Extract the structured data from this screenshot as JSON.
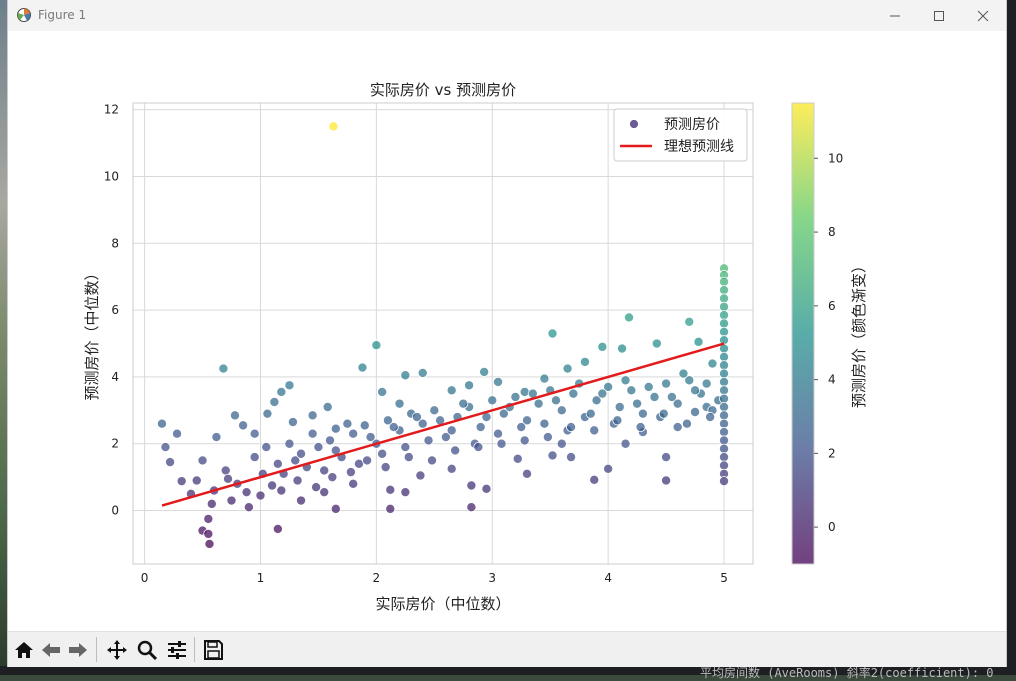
{
  "window": {
    "title": "Figure 1",
    "controls": [
      "minimize",
      "maximize",
      "close"
    ]
  },
  "toolbar": {
    "tools": [
      {
        "name": "home-icon"
      },
      {
        "name": "back-icon"
      },
      {
        "name": "forward-icon"
      },
      {
        "name": "pan-icon"
      },
      {
        "name": "zoom-icon"
      },
      {
        "name": "configure-subplots-icon"
      },
      {
        "name": "save-icon"
      }
    ]
  },
  "desktop": {
    "bottom_text": "平均房间数 (AveRooms) 斜率2(coefficient): 0"
  },
  "chart_data": {
    "type": "scatter",
    "title": "实际房价 vs 预测房价",
    "xlabel": "实际房价（中位数）",
    "ylabel": "预测房价（中位数）",
    "xlim": [
      -0.1,
      5.25
    ],
    "ylim": [
      -1.6,
      12.2
    ],
    "xticks": [
      0,
      1,
      2,
      3,
      4,
      5
    ],
    "yticks": [
      0,
      2,
      4,
      6,
      8,
      10,
      12
    ],
    "grid": true,
    "legend_placement": "top-right",
    "legend": [
      {
        "label": "预测房价",
        "kind": "marker",
        "color": "#6b5b95"
      },
      {
        "label": "理想预测线",
        "kind": "line",
        "color": "#e31a1c"
      }
    ],
    "colorbar": {
      "label": "预测房价（颜色渐变）",
      "range": [
        -1.0,
        11.5
      ],
      "ticks": [
        0,
        2,
        4,
        6,
        8,
        10
      ],
      "colormap": "viridis"
    },
    "ideal_line": {
      "x": [
        0.15,
        5.0
      ],
      "y": [
        0.15,
        5.0
      ],
      "color": "#e31a1c"
    },
    "series": [
      {
        "name": "预测房价",
        "points": [
          [
            1.63,
            11.5
          ],
          [
            0.68,
            4.25
          ],
          [
            1.25,
            3.75
          ],
          [
            0.15,
            2.6
          ],
          [
            0.28,
            2.3
          ],
          [
            0.18,
            1.9
          ],
          [
            0.22,
            1.45
          ],
          [
            0.32,
            0.88
          ],
          [
            0.55,
            -0.25
          ],
          [
            0.5,
            -0.6
          ],
          [
            0.55,
            -0.7
          ],
          [
            0.56,
            -1.0
          ],
          [
            1.15,
            -0.55
          ],
          [
            0.62,
            2.2
          ],
          [
            0.78,
            2.85
          ],
          [
            0.85,
            2.55
          ],
          [
            1.12,
            3.25
          ],
          [
            1.18,
            3.55
          ],
          [
            1.06,
            2.9
          ],
          [
            0.95,
            2.3
          ],
          [
            1.28,
            2.65
          ],
          [
            1.45,
            2.85
          ],
          [
            1.58,
            3.1
          ],
          [
            1.65,
            2.45
          ],
          [
            1.88,
            4.28
          ],
          [
            2.0,
            4.95
          ],
          [
            2.25,
            4.05
          ],
          [
            2.4,
            4.12
          ],
          [
            2.05,
            3.55
          ],
          [
            2.2,
            3.2
          ],
          [
            2.65,
            3.6
          ],
          [
            2.8,
            3.75
          ],
          [
            2.93,
            4.15
          ],
          [
            3.05,
            3.85
          ],
          [
            3.28,
            3.55
          ],
          [
            3.45,
            3.95
          ],
          [
            3.52,
            5.3
          ],
          [
            3.65,
            4.25
          ],
          [
            3.8,
            4.45
          ],
          [
            3.95,
            4.9
          ],
          [
            4.12,
            4.85
          ],
          [
            4.18,
            5.78
          ],
          [
            4.42,
            5.0
          ],
          [
            4.7,
            5.65
          ],
          [
            4.78,
            5.05
          ],
          [
            4.9,
            4.4
          ],
          [
            2.12,
            0.62
          ],
          [
            2.25,
            0.55
          ],
          [
            2.12,
            0.05
          ],
          [
            2.82,
            0.1
          ],
          [
            2.82,
            0.75
          ],
          [
            2.95,
            0.65
          ],
          [
            3.3,
            1.1
          ],
          [
            3.52,
            1.65
          ],
          [
            3.68,
            1.6
          ],
          [
            3.88,
            0.92
          ],
          [
            4.0,
            1.25
          ],
          [
            4.5,
            0.9
          ],
          [
            4.5,
            1.6
          ],
          [
            1.65,
            0.05
          ],
          [
            1.35,
            0.3
          ],
          [
            1.55,
            0.55
          ],
          [
            1.8,
            0.8
          ],
          [
            2.38,
            1.05
          ],
          [
            2.65,
            1.25
          ],
          [
            3.22,
            1.55
          ],
          [
            3.6,
            2.0
          ],
          [
            4.15,
            2.0
          ],
          [
            4.3,
            2.35
          ],
          [
            4.6,
            2.5
          ],
          [
            4.75,
            2.95
          ],
          [
            4.85,
            3.1
          ],
          [
            0.45,
            0.9
          ],
          [
            0.6,
            0.6
          ],
          [
            0.75,
            0.3
          ],
          [
            0.9,
            0.1
          ],
          [
            1.0,
            0.45
          ],
          [
            1.1,
            0.75
          ],
          [
            1.2,
            1.1
          ],
          [
            1.3,
            1.5
          ],
          [
            1.4,
            1.3
          ],
          [
            1.5,
            1.9
          ],
          [
            1.6,
            2.1
          ],
          [
            1.7,
            1.6
          ],
          [
            1.8,
            2.3
          ],
          [
            1.9,
            2.55
          ],
          [
            2.0,
            2.0
          ],
          [
            2.1,
            2.7
          ],
          [
            2.2,
            2.4
          ],
          [
            2.3,
            2.9
          ],
          [
            2.4,
            2.6
          ],
          [
            2.5,
            3.0
          ],
          [
            2.6,
            2.2
          ],
          [
            2.7,
            2.8
          ],
          [
            2.8,
            3.1
          ],
          [
            2.9,
            2.5
          ],
          [
            3.0,
            3.3
          ],
          [
            3.1,
            2.9
          ],
          [
            3.2,
            3.4
          ],
          [
            3.3,
            2.7
          ],
          [
            3.4,
            3.2
          ],
          [
            3.5,
            3.6
          ],
          [
            3.6,
            3.0
          ],
          [
            3.7,
            3.5
          ],
          [
            3.8,
            2.8
          ],
          [
            3.9,
            3.3
          ],
          [
            4.0,
            3.7
          ],
          [
            4.1,
            3.1
          ],
          [
            4.2,
            3.6
          ],
          [
            4.3,
            2.9
          ],
          [
            4.4,
            3.4
          ],
          [
            4.5,
            3.8
          ],
          [
            4.6,
            3.2
          ],
          [
            4.7,
            3.9
          ],
          [
            4.8,
            3.5
          ],
          [
            4.9,
            3.0
          ],
          [
            0.5,
            1.5
          ],
          [
            0.7,
            1.2
          ],
          [
            0.8,
            0.8
          ],
          [
            0.95,
            1.6
          ],
          [
            1.05,
            1.9
          ],
          [
            1.15,
            1.4
          ],
          [
            1.25,
            2.0
          ],
          [
            1.35,
            1.7
          ],
          [
            1.45,
            2.3
          ],
          [
            1.55,
            1.2
          ],
          [
            1.65,
            1.8
          ],
          [
            1.75,
            2.6
          ],
          [
            1.85,
            1.4
          ],
          [
            1.95,
            2.2
          ],
          [
            2.05,
            1.7
          ],
          [
            2.15,
            2.5
          ],
          [
            2.25,
            1.9
          ],
          [
            2.35,
            2.8
          ],
          [
            2.45,
            2.1
          ],
          [
            2.55,
            2.7
          ],
          [
            2.65,
            2.4
          ],
          [
            2.75,
            3.2
          ],
          [
            2.85,
            2.0
          ],
          [
            2.95,
            2.8
          ],
          [
            3.05,
            2.3
          ],
          [
            3.15,
            3.1
          ],
          [
            3.25,
            2.5
          ],
          [
            3.35,
            3.5
          ],
          [
            3.45,
            2.6
          ],
          [
            3.55,
            3.3
          ],
          [
            3.65,
            2.4
          ],
          [
            3.75,
            3.8
          ],
          [
            3.85,
            2.9
          ],
          [
            3.95,
            3.5
          ],
          [
            4.05,
            2.6
          ],
          [
            4.15,
            3.9
          ],
          [
            4.25,
            3.2
          ],
          [
            4.35,
            3.7
          ],
          [
            4.45,
            2.8
          ],
          [
            4.55,
            3.4
          ],
          [
            4.65,
            4.1
          ],
          [
            4.75,
            3.6
          ],
          [
            4.85,
            3.8
          ],
          [
            4.95,
            3.3
          ],
          [
            0.4,
            0.5
          ],
          [
            0.58,
            0.2
          ],
          [
            0.72,
            0.95
          ],
          [
            0.88,
            0.55
          ],
          [
            1.02,
            1.1
          ],
          [
            1.18,
            0.6
          ],
          [
            1.32,
            0.9
          ],
          [
            1.48,
            0.7
          ],
          [
            1.62,
            1.0
          ],
          [
            1.78,
            1.15
          ],
          [
            1.92,
            1.5
          ],
          [
            2.08,
            1.3
          ],
          [
            2.28,
            1.6
          ],
          [
            2.48,
            1.5
          ],
          [
            2.68,
            1.8
          ],
          [
            2.88,
            1.9
          ],
          [
            3.08,
            2.0
          ],
          [
            3.28,
            2.1
          ],
          [
            3.48,
            2.2
          ],
          [
            3.68,
            2.5
          ],
          [
            3.88,
            2.4
          ],
          [
            4.08,
            2.7
          ],
          [
            4.28,
            2.5
          ],
          [
            4.48,
            2.9
          ],
          [
            4.68,
            2.6
          ],
          [
            4.88,
            2.8
          ],
          [
            5.0,
            7.25
          ],
          [
            5.0,
            7.05
          ],
          [
            5.0,
            6.85
          ],
          [
            5.0,
            6.6
          ],
          [
            5.0,
            6.35
          ],
          [
            5.0,
            6.1
          ],
          [
            5.0,
            5.85
          ],
          [
            5.0,
            5.6
          ],
          [
            5.0,
            5.35
          ],
          [
            5.0,
            5.1
          ],
          [
            5.0,
            4.85
          ],
          [
            5.0,
            4.6
          ],
          [
            5.0,
            4.35
          ],
          [
            5.0,
            4.1
          ],
          [
            5.0,
            3.85
          ],
          [
            5.0,
            3.6
          ],
          [
            5.0,
            3.35
          ],
          [
            5.0,
            3.1
          ],
          [
            5.0,
            2.85
          ],
          [
            5.0,
            2.6
          ],
          [
            5.0,
            2.35
          ],
          [
            5.0,
            2.1
          ],
          [
            5.0,
            1.85
          ],
          [
            5.0,
            1.6
          ],
          [
            5.0,
            1.35
          ],
          [
            5.0,
            1.1
          ],
          [
            5.0,
            0.88
          ]
        ]
      }
    ]
  }
}
